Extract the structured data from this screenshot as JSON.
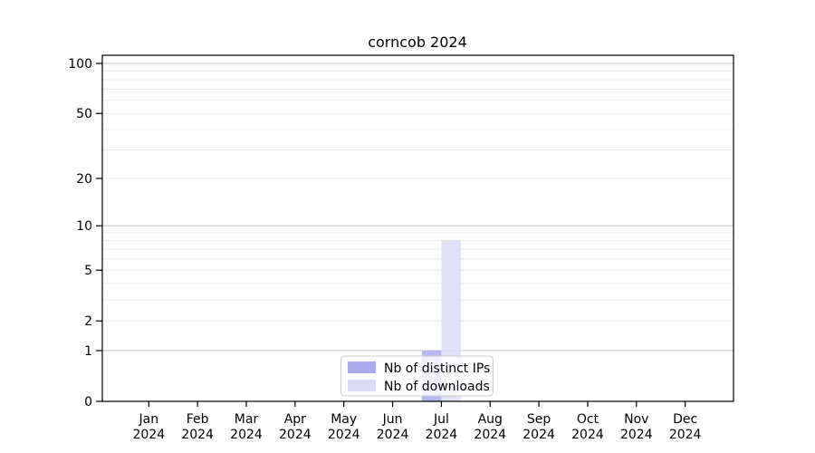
{
  "chart_data": {
    "type": "bar",
    "title": "corncob 2024",
    "categories": [
      "Jan 2024",
      "Feb 2024",
      "Mar 2024",
      "Apr 2024",
      "May 2024",
      "Jun 2024",
      "Jul 2024",
      "Aug 2024",
      "Sep 2024",
      "Oct 2024",
      "Nov 2024",
      "Dec 2024"
    ],
    "series": [
      {
        "name": "Nb of distinct IPs",
        "color": "#aaaaee",
        "values": [
          0,
          0,
          0,
          0,
          0,
          0,
          1,
          0,
          0,
          0,
          0,
          0
        ]
      },
      {
        "name": "Nb of downloads",
        "color": "#dcdcf8",
        "values": [
          0,
          0,
          0,
          0,
          0,
          0,
          8,
          0,
          0,
          0,
          0,
          0
        ]
      }
    ],
    "xlabel": "",
    "ylabel": "",
    "y_axis": {
      "scale": "log1p",
      "ticks": [
        0,
        1,
        2,
        5,
        10,
        20,
        50,
        100
      ],
      "major_gridlines": [
        1,
        10,
        100
      ],
      "minor_gridlines": [
        2,
        3,
        4,
        5,
        6,
        7,
        8,
        9,
        20,
        30,
        40,
        50,
        60,
        70,
        80,
        90
      ],
      "ylim": [
        0,
        112
      ]
    },
    "grid": true,
    "legend_position": "lower center"
  },
  "colors": {
    "axis": "#000000",
    "major_grid": "#c9c9c9",
    "minor_grid": "#ececec",
    "bar_distinct_ips": "#aaaaee",
    "bar_downloads": "#dcdcf8",
    "legend_border": "#cccccc",
    "background": "#ffffff"
  }
}
